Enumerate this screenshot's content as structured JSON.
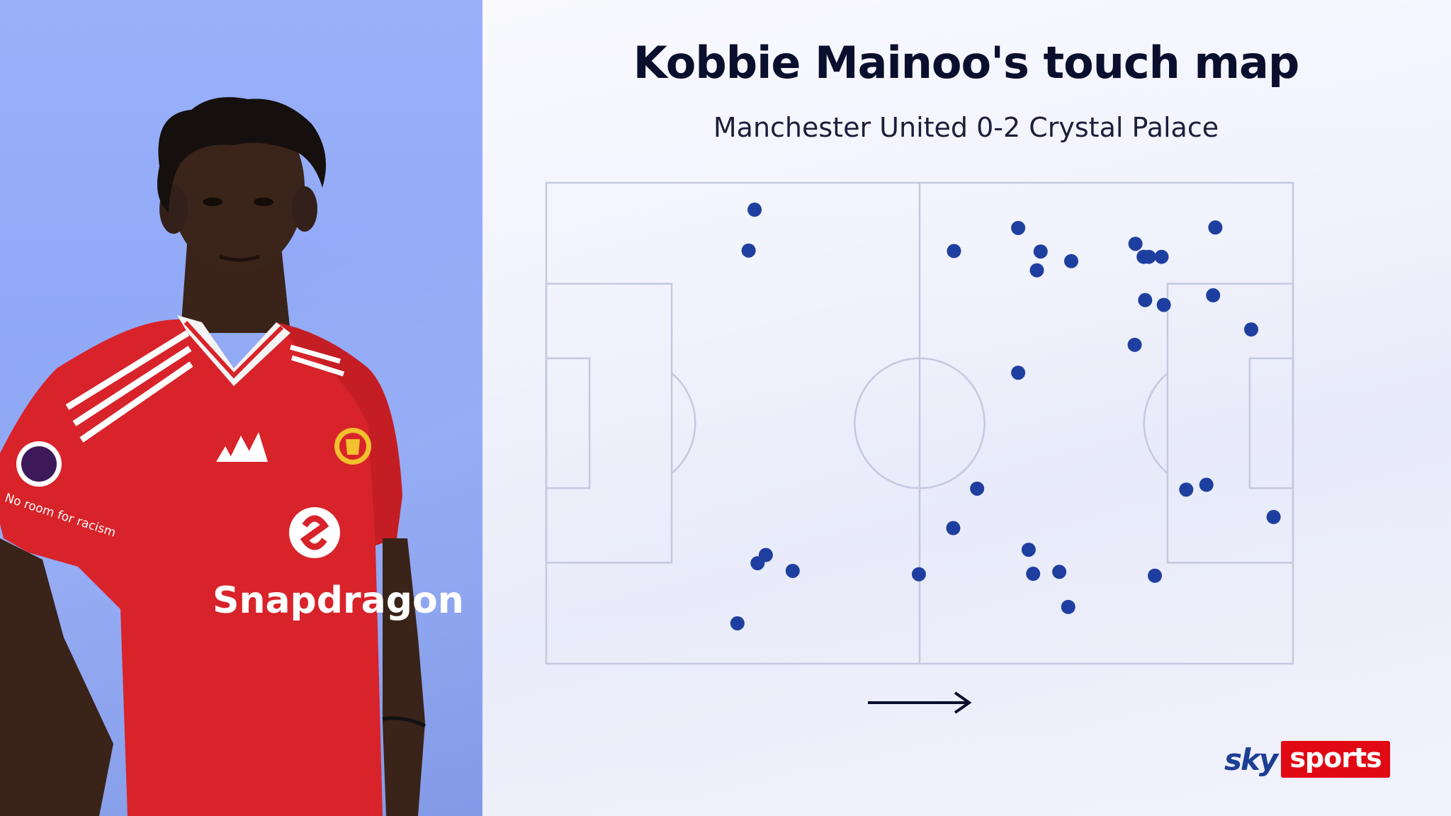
{
  "header": {
    "title": "Kobbie Mainoo's touch map",
    "subtitle": "Manchester United 0-2 Crystal Palace"
  },
  "player_image": {
    "shirt_sponsor": "Snapdragon",
    "sleeve_text": "No room for racism",
    "colors": {
      "shirt": "#d8232a",
      "skin": "#3b2419",
      "background": "#9ab0fb"
    }
  },
  "direction_indicator": {
    "icon": "arrow-right-icon",
    "direction": "left-to-right"
  },
  "branding": {
    "sky": "sky",
    "sports": "sports",
    "sports_bg": "#e10a14",
    "sky_color": "#1c3f94"
  },
  "chart_data": {
    "type": "scatter",
    "title": "Kobbie Mainoo's touch map",
    "subtitle": "Manchester United 0-2 Crystal Palace",
    "xlim": [
      0,
      100
    ],
    "ylim": [
      0,
      100
    ],
    "marker_color": "#1e3fa0",
    "pitch_line_color": "#c4c9df",
    "points": [
      {
        "x": 27.9,
        "y": 94.4
      },
      {
        "x": 27.1,
        "y": 85.9
      },
      {
        "x": 29.4,
        "y": 22.6
      },
      {
        "x": 28.3,
        "y": 20.9
      },
      {
        "x": 33.0,
        "y": 19.3
      },
      {
        "x": 25.6,
        "y": 8.4
      },
      {
        "x": 54.6,
        "y": 85.8
      },
      {
        "x": 63.2,
        "y": 90.6
      },
      {
        "x": 66.2,
        "y": 85.7
      },
      {
        "x": 65.7,
        "y": 81.8
      },
      {
        "x": 70.3,
        "y": 83.7
      },
      {
        "x": 63.2,
        "y": 60.5
      },
      {
        "x": 57.7,
        "y": 36.4
      },
      {
        "x": 54.5,
        "y": 28.2
      },
      {
        "x": 49.9,
        "y": 18.6
      },
      {
        "x": 64.6,
        "y": 23.7
      },
      {
        "x": 65.2,
        "y": 18.7
      },
      {
        "x": 68.7,
        "y": 19.1
      },
      {
        "x": 69.9,
        "y": 11.8
      },
      {
        "x": 81.5,
        "y": 18.3
      },
      {
        "x": 78.9,
        "y": 87.3
      },
      {
        "x": 80.0,
        "y": 84.6
      },
      {
        "x": 80.7,
        "y": 84.6
      },
      {
        "x": 82.4,
        "y": 84.6
      },
      {
        "x": 89.6,
        "y": 90.7
      },
      {
        "x": 80.2,
        "y": 75.6
      },
      {
        "x": 82.7,
        "y": 74.6
      },
      {
        "x": 89.3,
        "y": 76.6
      },
      {
        "x": 94.4,
        "y": 69.5
      },
      {
        "x": 78.8,
        "y": 66.3
      },
      {
        "x": 85.7,
        "y": 36.2
      },
      {
        "x": 88.4,
        "y": 37.2
      },
      {
        "x": 97.4,
        "y": 30.5
      }
    ]
  }
}
